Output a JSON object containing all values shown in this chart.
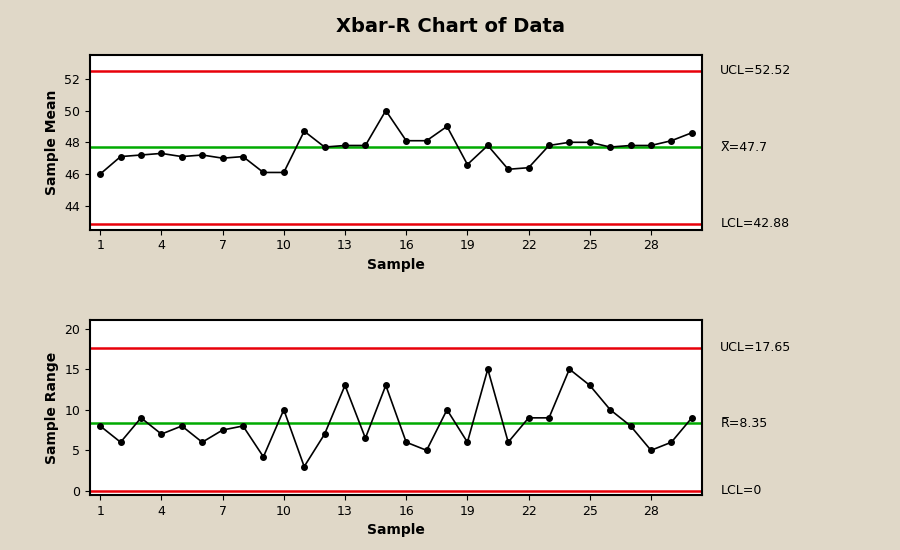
{
  "title": "Xbar-R Chart of Data",
  "xbar_data": [
    46.0,
    47.1,
    47.2,
    47.3,
    47.1,
    47.2,
    47.0,
    47.1,
    46.1,
    46.1,
    48.7,
    47.7,
    47.8,
    47.8,
    50.0,
    48.1,
    48.1,
    49.0,
    46.6,
    47.8,
    46.3,
    46.4,
    47.8,
    48.0,
    48.0,
    47.7,
    47.8,
    47.8,
    48.1,
    48.6
  ],
  "range_data": [
    8.0,
    6.0,
    9.0,
    7.0,
    8.0,
    6.0,
    7.5,
    8.0,
    4.2,
    10.0,
    3.0,
    7.0,
    13.0,
    6.5,
    13.0,
    6.0,
    5.0,
    10.0,
    6.0,
    15.0,
    6.0,
    9.0,
    9.0,
    15.0,
    13.0,
    10.0,
    8.0,
    5.0,
    6.0,
    9.0
  ],
  "xbar_ucl": 52.52,
  "xbar_cl": 47.7,
  "xbar_lcl": 42.88,
  "range_ucl": 17.65,
  "range_cl": 8.35,
  "range_lcl": 0,
  "xbar_ylim": [
    42.5,
    53.5
  ],
  "range_ylim": [
    -0.5,
    21.0
  ],
  "xbar_yticks": [
    44,
    46,
    48,
    50,
    52
  ],
  "range_yticks": [
    0,
    5,
    10,
    15,
    20
  ],
  "xticks": [
    1,
    4,
    7,
    10,
    13,
    16,
    19,
    22,
    25,
    28
  ],
  "xlabel": "Sample",
  "xbar_ylabel": "Sample Mean",
  "range_ylabel": "Sample Range",
  "ucl_color": "#e8000a",
  "lcl_color": "#e8000a",
  "cl_color": "#00aa00",
  "line_color": "#000000",
  "bg_color": "#e0d8c8",
  "plot_bg": "#ffffff",
  "title_fontsize": 14,
  "label_fontsize": 10,
  "annotation_fontsize": 9
}
